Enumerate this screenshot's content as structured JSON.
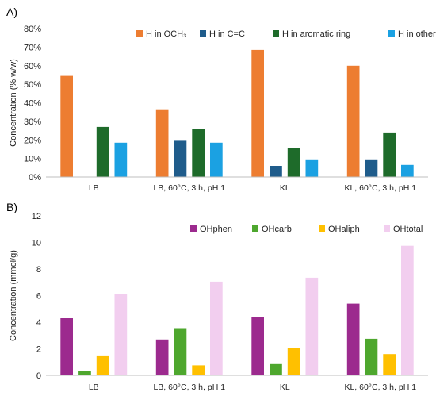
{
  "chart_data": [
    {
      "panel_label": "A)",
      "type": "bar",
      "categories": [
        "LB",
        "LB, 60°C, 3 h, pH 1",
        "KL",
        "KL, 60°C, 3 h, pH 1"
      ],
      "series": [
        {
          "name": "H in OCH₃",
          "color": "#ED7D31",
          "values": [
            54.5,
            36.5,
            68.5,
            60.0
          ]
        },
        {
          "name": "H in C=C",
          "color": "#1F5C8B",
          "values": [
            0,
            19.5,
            6.0,
            9.5
          ]
        },
        {
          "name": "H in aromatic ring",
          "color": "#1E6B2A",
          "values": [
            27.0,
            26.0,
            15.5,
            24.0
          ]
        },
        {
          "name": "H in other groups",
          "color": "#1BA1E2",
          "values": [
            18.5,
            18.5,
            9.5,
            6.5
          ]
        }
      ],
      "yticks": [
        "0%",
        "10%",
        "20%",
        "30%",
        "40%",
        "50%",
        "60%",
        "70%",
        "80%"
      ],
      "ylabel": "Concentration (% w/w)",
      "xlabel": "",
      "ylim": [
        0,
        80
      ],
      "legend": "top-right",
      "grid": false
    },
    {
      "panel_label": "B)",
      "type": "bar",
      "categories": [
        "LB",
        "LB, 60°C, 3 h, pH 1",
        "KL",
        "KL, 60°C, 3 h, pH 1"
      ],
      "series": [
        {
          "name": "OHphen",
          "color": "#9C2A8E",
          "values": [
            4.3,
            2.7,
            4.4,
            5.4
          ]
        },
        {
          "name": "OHcarb",
          "color": "#4EA72E",
          "values": [
            0.35,
            3.55,
            0.85,
            2.75
          ]
        },
        {
          "name": "OHaliph",
          "color": "#FFC000",
          "values": [
            1.5,
            0.75,
            2.05,
            1.6
          ]
        },
        {
          "name": "OHtotal",
          "color": "#F2CEEF",
          "values": [
            6.15,
            7.05,
            7.35,
            9.75
          ]
        }
      ],
      "yticks": [
        "0",
        "2",
        "4",
        "6",
        "8",
        "10",
        "12"
      ],
      "ylabel": "Concentration (mmol/g)",
      "xlabel": "",
      "ylim": [
        0,
        12
      ],
      "legend": "top-right",
      "grid": false
    }
  ]
}
